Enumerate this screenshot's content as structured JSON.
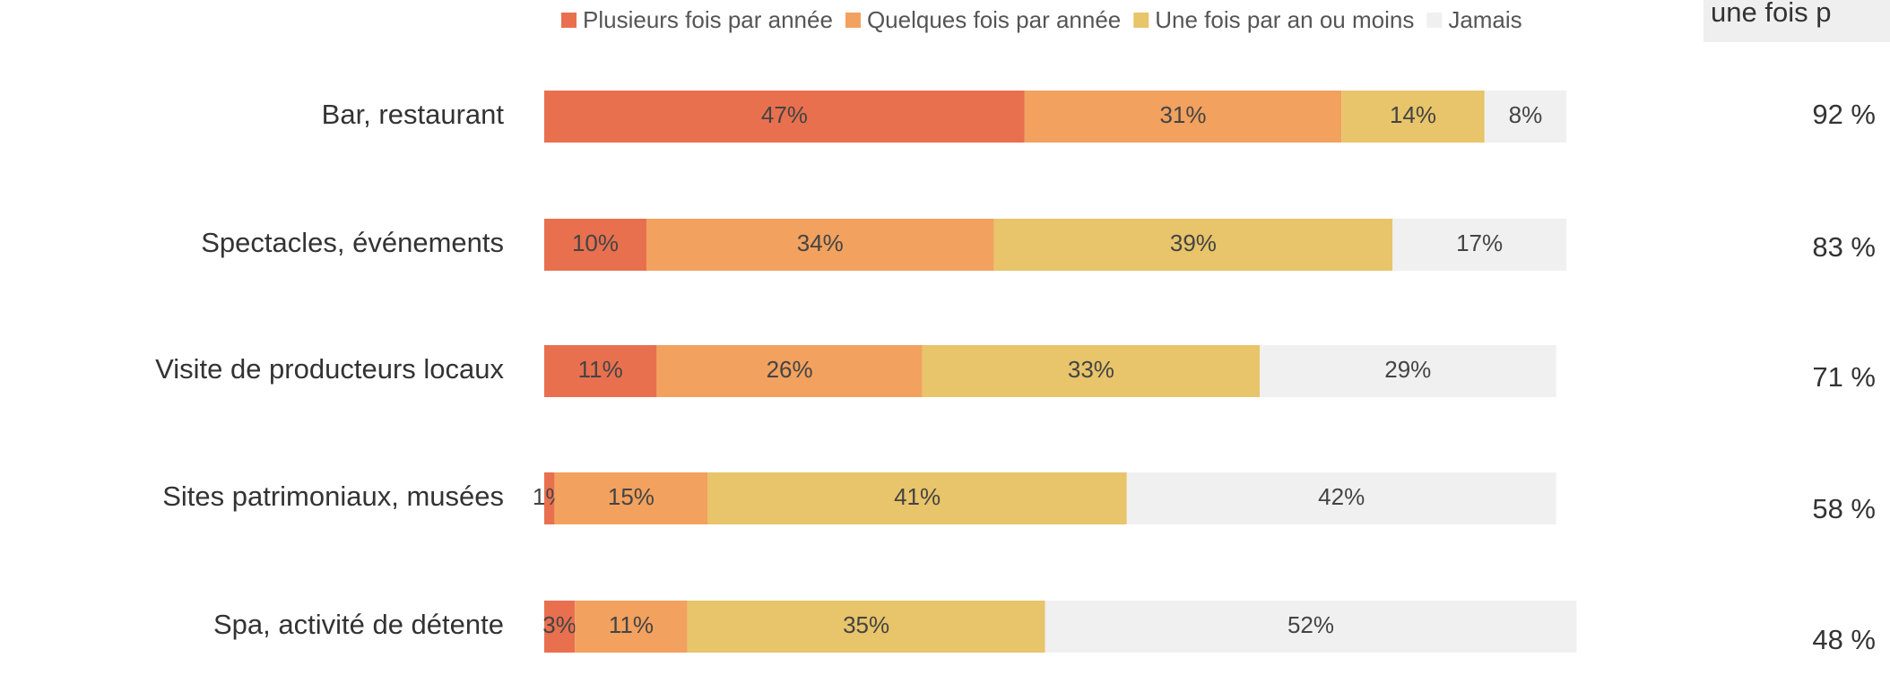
{
  "chart_data": {
    "type": "stacked-bar-horizontal",
    "categories": [
      "Bar, restaurant",
      "Spectacles, événements",
      "Visite de producteurs locaux",
      "Sites patrimoniaux, musées",
      "Spa, activité de détente"
    ],
    "series": [
      {
        "name": "Plusieurs fois par année",
        "color": "#e8704f",
        "values": [
          47,
          10,
          11,
          1,
          3
        ],
        "value_labels": [
          "47%",
          "10%",
          "11%",
          "1%",
          "3%"
        ]
      },
      {
        "name": "Quelques fois par année",
        "color": "#f2a15f",
        "values": [
          31,
          34,
          26,
          15,
          11
        ],
        "value_labels": [
          "31%",
          "34%",
          "26%",
          "15%",
          "11%"
        ]
      },
      {
        "name": "Une fois par an ou moins",
        "color": "#e8c46a",
        "values": [
          14,
          39,
          33,
          41,
          35
        ],
        "value_labels": [
          "14%",
          "39%",
          "33%",
          "41%",
          "35%"
        ]
      },
      {
        "name": "Jamais",
        "color": "#f0f0f0",
        "values": [
          8,
          17,
          29,
          42,
          52
        ],
        "value_labels": [
          "8%",
          "17%",
          "29%",
          "42%",
          "52%"
        ]
      }
    ],
    "xlim": [
      0,
      100
    ],
    "side_header": "une fois p",
    "side_values": [
      92,
      83,
      71,
      58,
      48
    ],
    "side_value_labels": [
      "92 %",
      "83 %",
      "71 %",
      "58 %",
      "48 %"
    ]
  }
}
